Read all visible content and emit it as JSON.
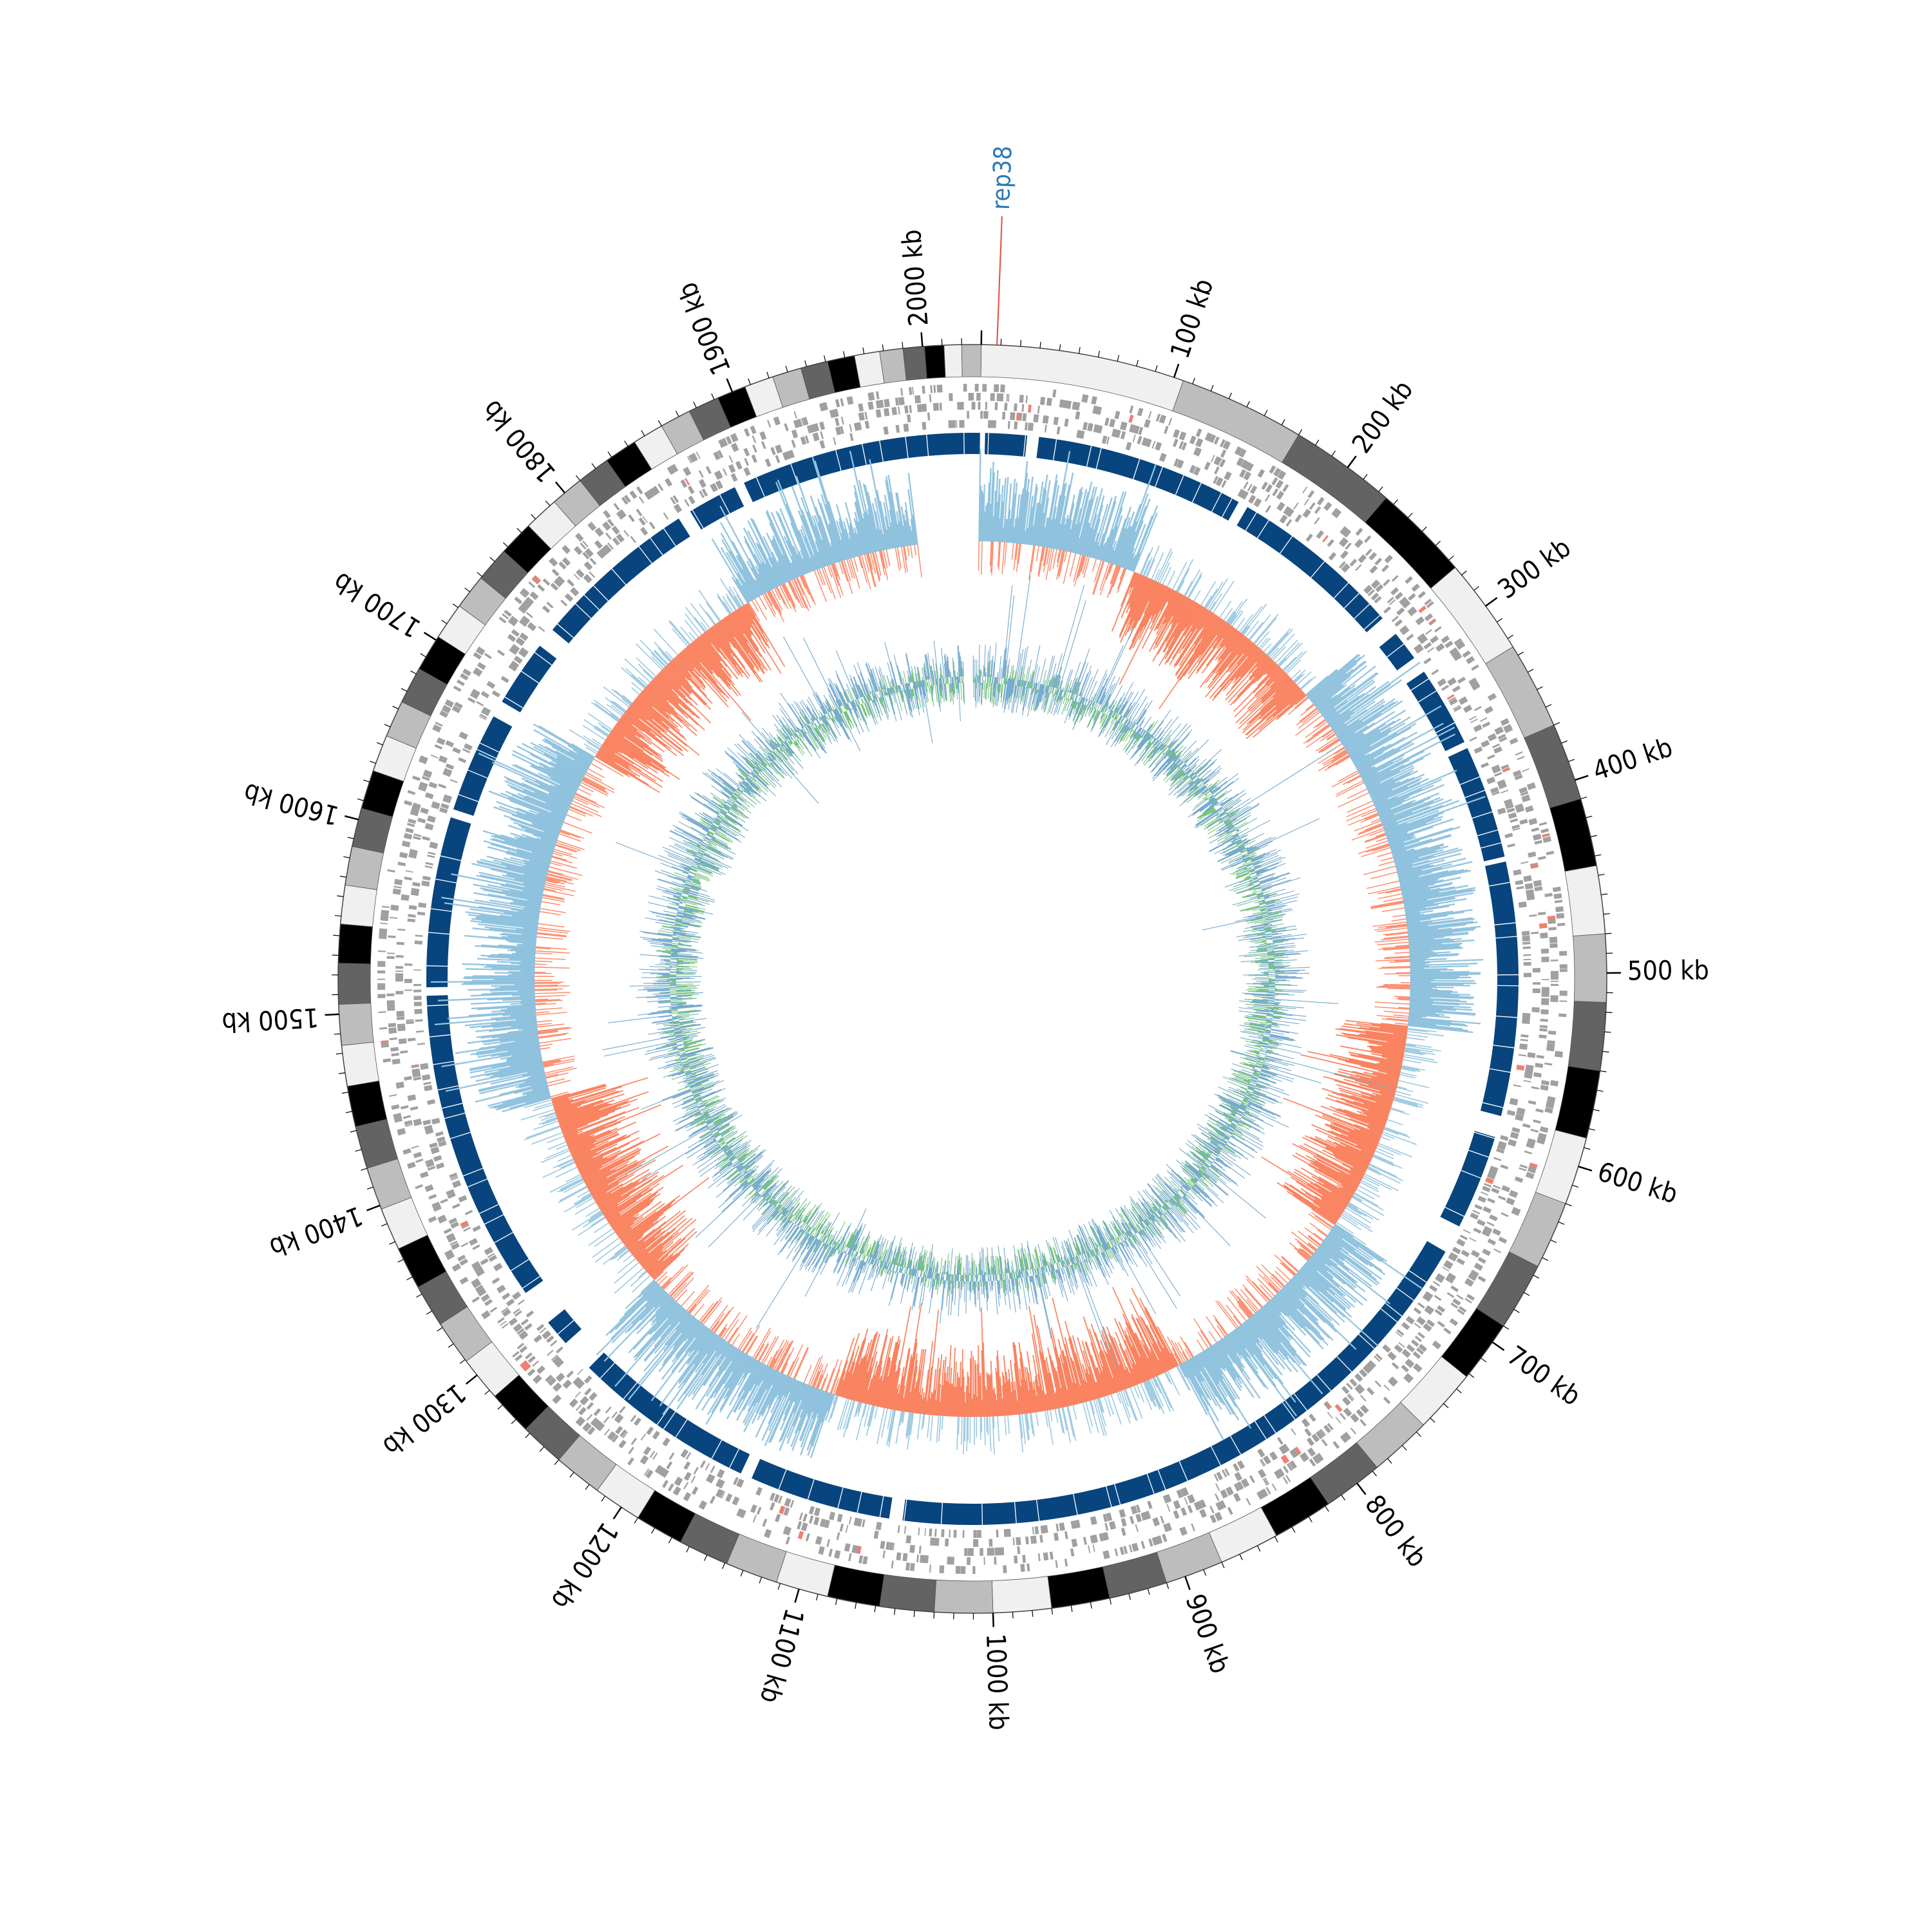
{
  "genome": {
    "total_kb": 2030,
    "start_kb": 0,
    "label_step_kb": 100,
    "minor_tick_kb": 10
  },
  "ticks": {
    "labels": [
      "100 kb",
      "200 kb",
      "300 kb",
      "400 kb",
      "500 kb",
      "600 kb",
      "700 kb",
      "800 kb",
      "900 kb",
      "1000 kb",
      "1100 kb",
      "1200 kb",
      "1300 kb",
      "1400 kb",
      "1500 kb",
      "1600 kb",
      "1700 kb",
      "1800 kb",
      "1900 kb",
      "2000 kb"
    ],
    "positions_kb": [
      100,
      200,
      300,
      400,
      500,
      600,
      700,
      800,
      900,
      1000,
      1100,
      1200,
      1300,
      1400,
      1500,
      1600,
      1700,
      1800,
      1900,
      2000
    ]
  },
  "marker": {
    "label": "rep38",
    "position_kb": 8,
    "line_color": "#e8473c",
    "label_color": "#2a7ab8"
  },
  "ideogram": {
    "shades": [
      "#f0f0f0",
      "#bdbdbd",
      "#636363",
      "#000000"
    ],
    "band_boundaries_kb": [
      0,
      105,
      170,
      225,
      275,
      325,
      370,
      410,
      445,
      480,
      515,
      550,
      585,
      620,
      655,
      690,
      722,
      755,
      787,
      818,
      849,
      880,
      910,
      940,
      970,
      1000,
      1030,
      1058,
      1085,
      1112,
      1139,
      1165,
      1190,
      1215,
      1240,
      1263,
      1286,
      1309,
      1332,
      1354,
      1376,
      1398,
      1420,
      1442,
      1463,
      1484,
      1505,
      1526,
      1546,
      1566,
      1586,
      1606,
      1626,
      1645,
      1664,
      1683,
      1702,
      1721,
      1739,
      1757,
      1775,
      1793,
      1810,
      1827,
      1844,
      1860,
      1876,
      1892,
      1907,
      1922,
      1937,
      1951,
      1965,
      1978,
      1990,
      2001,
      2011,
      2020,
      2030
    ]
  },
  "tracks": {
    "genes_color": "#a0a0a0",
    "genes_highlight_color": "#f08070",
    "blocks_color": "#08457e",
    "skew_positive_color": "#9ecae1",
    "skew_negative_color": "#fc8d6e",
    "gc_color": "#74a9cf",
    "gc_secondary_color": "#74c476"
  },
  "block_gaps_kb": [
    [
      0,
      3
    ],
    [
      28,
      35
    ],
    [
      160,
      166
    ],
    [
      270,
      282
    ],
    [
      300,
      310
    ],
    [
      358,
      362
    ],
    [
      430,
      433
    ],
    [
      585,
      598
    ],
    [
      655,
      672
    ],
    [
      1052,
      1060
    ],
    [
      1145,
      1152
    ],
    [
      1262,
      1282
    ],
    [
      1298,
      1320
    ],
    [
      1508,
      1513
    ],
    [
      1615,
      1620
    ],
    [
      1680,
      1690
    ],
    [
      1730,
      1742
    ],
    [
      1842,
      1850
    ],
    [
      1880,
      1886
    ]
  ],
  "skew_gap_kb": [
    1985,
    2030
  ],
  "gc_gap_kb": [
    2016,
    2026
  ]
}
